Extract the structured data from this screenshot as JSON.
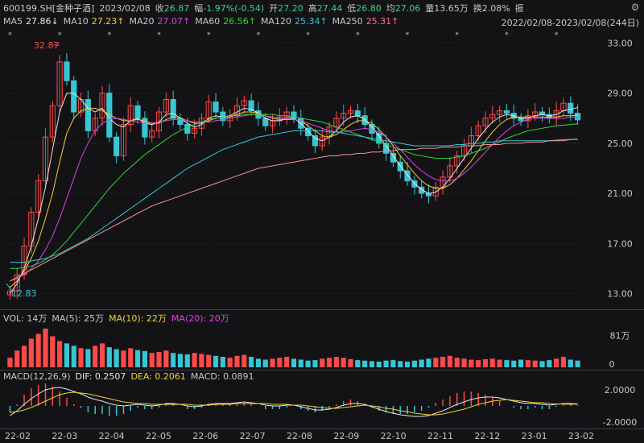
{
  "header": {
    "stock": "600199.SH[金种子酒]",
    "date": "2023/02/08",
    "close_label": "收",
    "close_value": "26.87",
    "change_label": "幅",
    "change_value": "-1.97%(-0.54)",
    "open_label": "开",
    "open_value": "27.20",
    "high_label": "高",
    "high_value": "27.44",
    "low_label": "低",
    "low_value": "26.80",
    "avg_label": "均",
    "avg_value": "27.06",
    "vol_label": "量",
    "vol_value": "13.65万",
    "turnover_label": "换",
    "turnover_value": "2.08%",
    "amp_label": "振"
  },
  "ma_legend": {
    "ma5_label": "MA5",
    "ma5_value": "27.86↓",
    "ma10_label": "MA10",
    "ma10_value": "27.23↑",
    "ma20_label": "MA20",
    "ma20_value": "27.07↑",
    "ma60_label": "MA60",
    "ma60_value": "26.56↑",
    "ma120_label": "MA120",
    "ma120_value": "25.34↑",
    "ma250_label": "MA250",
    "ma250_value": "25.31↑",
    "range": "2022/02/08-2023/02/08(244日)"
  },
  "colors": {
    "ma5": "#e8e8e8",
    "ma10": "#f0d030",
    "ma20": "#e040e0",
    "ma60": "#37d23d",
    "ma120": "#37c6d4",
    "ma250": "#ff8f8f",
    "up": "#ff4a4a",
    "down": "#37c6d4"
  },
  "price_axis": {
    "ticks": [
      "33.00",
      "29.00",
      "25.00",
      "21.00",
      "17.00",
      "13.00"
    ],
    "tick_values": [
      33,
      29,
      25,
      21,
      17,
      13
    ],
    "high_marker": "32.87",
    "low_marker": "12.83"
  },
  "volume_panel": {
    "title": "VOL: 14万",
    "ma5": "MA(5): 25万",
    "ma10": "MA(10): 22万",
    "ma20": "MA(20): 20万",
    "axis_top": "81万",
    "axis_zero": "0"
  },
  "macd_panel": {
    "title": "MACD(12,26,9)",
    "dif": "DIF: 0.2507",
    "dea": "DEA: 0.2061",
    "macd": "MACD: 0.0891",
    "axis_top": "2.0000",
    "axis_bottom": "-2.0000"
  },
  "x_axis": {
    "labels": [
      "22-02",
      "22-03",
      "22-04",
      "22-05",
      "22-06",
      "22-07",
      "22-08",
      "22-09",
      "22-10",
      "22-11",
      "22-12",
      "23-01",
      "23-02"
    ]
  },
  "chart_data": {
    "type": "candlestick",
    "price_range": [
      12.0,
      34.0
    ],
    "closes": [
      13.2,
      14.5,
      16.8,
      19.5,
      22.0,
      25.5,
      28.0,
      31.5,
      30.0,
      27.5,
      28.5,
      26.0,
      27.0,
      29.0,
      25.5,
      24.0,
      26.5,
      28.0,
      27.0,
      25.5,
      26.0,
      27.5,
      28.5,
      27.0,
      26.5,
      25.8,
      26.2,
      27.0,
      28.3,
      27.5,
      26.8,
      27.2,
      28.0,
      28.4,
      27.6,
      27.0,
      26.4,
      26.8,
      27.1,
      27.5,
      27.0,
      26.2,
      25.6,
      24.8,
      25.5,
      26.3,
      27.0,
      27.4,
      27.6,
      27.2,
      26.5,
      25.8,
      25.0,
      24.2,
      23.5,
      22.8,
      22.0,
      21.5,
      21.0,
      20.8,
      21.5,
      22.3,
      23.2,
      24.0,
      24.8,
      25.6,
      26.4,
      27.0,
      27.3,
      27.6,
      27.4,
      27.0,
      26.8,
      27.2,
      27.5,
      27.3,
      27.0,
      27.6,
      28.2,
      27.4,
      26.87
    ],
    "ma_series": {
      "ma5": [
        13.0,
        13.8,
        15.0,
        16.8,
        19.0,
        21.5,
        24.5,
        27.5,
        29.0,
        29.0,
        28.5,
        27.8,
        27.5,
        27.8,
        27.0,
        26.5,
        26.3,
        26.8,
        27.0,
        26.6,
        26.5,
        26.7,
        27.3,
        27.4,
        27.0,
        26.6,
        26.3,
        26.5,
        27.0,
        27.2,
        27.1,
        27.2,
        27.5,
        27.8,
        27.7,
        27.4,
        27.0,
        26.8,
        26.8,
        27.0,
        27.0,
        26.6,
        26.0,
        25.4,
        25.2,
        25.5,
        26.0,
        26.7,
        27.1,
        27.2,
        26.9,
        26.3,
        25.6,
        24.8,
        24.0,
        23.2,
        22.5,
        21.8,
        21.3,
        21.0,
        21.1,
        21.5,
        22.2,
        23.0,
        23.8,
        24.6,
        25.4,
        26.1,
        26.7,
        27.1,
        27.3,
        27.2,
        27.0,
        27.0,
        27.2,
        27.3,
        27.2,
        27.3,
        27.6,
        27.7,
        27.86
      ],
      "ma10": [
        13.5,
        14.0,
        14.8,
        15.8,
        17.2,
        19.0,
        21.0,
        23.5,
        25.8,
        27.0,
        27.6,
        27.8,
        27.8,
        27.6,
        27.3,
        27.0,
        26.8,
        26.8,
        26.9,
        26.8,
        26.6,
        26.6,
        26.9,
        27.1,
        27.0,
        26.8,
        26.6,
        26.6,
        26.8,
        27.0,
        27.1,
        27.1,
        27.3,
        27.5,
        27.5,
        27.4,
        27.2,
        27.0,
        26.9,
        26.9,
        26.9,
        26.8,
        26.4,
        26.0,
        25.6,
        25.5,
        25.7,
        26.1,
        26.5,
        26.8,
        26.8,
        26.6,
        26.1,
        25.5,
        24.8,
        24.0,
        23.3,
        22.6,
        22.0,
        21.6,
        21.4,
        21.4,
        21.7,
        22.2,
        22.9,
        23.6,
        24.4,
        25.2,
        25.9,
        26.5,
        26.9,
        27.1,
        27.1,
        27.1,
        27.1,
        27.1,
        27.1,
        27.1,
        27.2,
        27.2,
        27.23
      ],
      "ma20": [
        14.0,
        14.2,
        14.5,
        15.0,
        15.6,
        16.5,
        17.6,
        19.0,
        20.6,
        22.2,
        23.8,
        25.0,
        26.0,
        26.6,
        26.9,
        27.0,
        26.9,
        26.8,
        26.7,
        26.6,
        26.6,
        26.7,
        26.8,
        26.9,
        26.9,
        26.8,
        26.7,
        26.7,
        26.7,
        26.8,
        26.9,
        27.0,
        27.1,
        27.2,
        27.3,
        27.3,
        27.2,
        27.1,
        27.0,
        27.0,
        26.9,
        26.8,
        26.6,
        26.4,
        26.2,
        26.0,
        25.9,
        25.9,
        26.0,
        26.1,
        26.2,
        26.1,
        25.9,
        25.5,
        25.0,
        24.5,
        23.9,
        23.3,
        22.8,
        22.4,
        22.1,
        22.0,
        22.0,
        22.2,
        22.6,
        23.1,
        23.7,
        24.3,
        24.9,
        25.5,
        26.0,
        26.4,
        26.7,
        26.9,
        27.0,
        27.0,
        27.0,
        27.0,
        27.0,
        27.1,
        27.07
      ],
      "ma60": [
        15.0,
        15.0,
        15.1,
        15.2,
        15.4,
        15.7,
        16.1,
        16.6,
        17.2,
        17.9,
        18.6,
        19.3,
        20.0,
        20.7,
        21.4,
        22.0,
        22.6,
        23.1,
        23.6,
        24.1,
        24.5,
        24.9,
        25.3,
        25.7,
        26.0,
        26.3,
        26.5,
        26.7,
        26.9,
        27.0,
        27.1,
        27.2,
        27.2,
        27.3,
        27.3,
        27.3,
        27.3,
        27.3,
        27.2,
        27.2,
        27.1,
        27.0,
        26.9,
        26.8,
        26.7,
        26.5,
        26.3,
        26.1,
        25.9,
        25.7,
        25.5,
        25.3,
        25.1,
        24.9,
        24.7,
        24.5,
        24.3,
        24.1,
        24.0,
        23.9,
        23.8,
        23.8,
        23.8,
        23.9,
        24.0,
        24.2,
        24.4,
        24.6,
        24.9,
        25.1,
        25.4,
        25.6,
        25.8,
        26.0,
        26.1,
        26.2,
        26.3,
        26.4,
        26.45,
        26.5,
        26.56
      ],
      "ma120": [
        15.5,
        15.5,
        15.5,
        15.6,
        15.7,
        15.8,
        16.0,
        16.2,
        16.5,
        16.8,
        17.1,
        17.4,
        17.8,
        18.2,
        18.6,
        19.0,
        19.4,
        19.8,
        20.2,
        20.6,
        21.0,
        21.4,
        21.8,
        22.2,
        22.6,
        23.0,
        23.3,
        23.6,
        23.9,
        24.2,
        24.5,
        24.7,
        24.9,
        25.1,
        25.3,
        25.5,
        25.6,
        25.7,
        25.8,
        25.9,
        26.0,
        26.0,
        26.0,
        26.0,
        26.0,
        25.9,
        25.9,
        25.8,
        25.7,
        25.6,
        25.5,
        25.4,
        25.3,
        25.2,
        25.1,
        25.0,
        24.9,
        24.8,
        24.8,
        24.8,
        24.8,
        24.8,
        24.8,
        24.9,
        24.9,
        25.0,
        25.0,
        25.1,
        25.1,
        25.2,
        25.2,
        25.2,
        25.2,
        25.2,
        25.2,
        25.2,
        25.2,
        25.25,
        25.3,
        25.3,
        25.34
      ],
      "ma250": [
        14.0,
        14.3,
        14.6,
        14.9,
        15.2,
        15.5,
        15.8,
        16.1,
        16.4,
        16.7,
        17.0,
        17.3,
        17.6,
        17.9,
        18.2,
        18.5,
        18.8,
        19.1,
        19.4,
        19.7,
        20.0,
        20.2,
        20.4,
        20.6,
        20.8,
        21.0,
        21.2,
        21.4,
        21.6,
        21.8,
        22.0,
        22.2,
        22.4,
        22.6,
        22.8,
        23.0,
        23.1,
        23.2,
        23.3,
        23.4,
        23.5,
        23.6,
        23.7,
        23.8,
        23.9,
        24.0,
        24.0,
        24.1,
        24.1,
        24.2,
        24.2,
        24.3,
        24.3,
        24.4,
        24.4,
        24.5,
        24.5,
        24.5,
        24.6,
        24.6,
        24.6,
        24.7,
        24.7,
        24.7,
        24.8,
        24.8,
        24.8,
        24.9,
        24.9,
        24.9,
        25.0,
        25.0,
        25.0,
        25.1,
        25.1,
        25.1,
        25.2,
        25.2,
        25.2,
        25.3,
        25.31
      ]
    },
    "volume_max": 81,
    "volume_values": [
      20,
      35,
      45,
      60,
      70,
      81,
      65,
      55,
      50,
      45,
      40,
      38,
      45,
      50,
      42,
      38,
      35,
      40,
      36,
      34,
      30,
      32,
      35,
      30,
      28,
      27,
      30,
      28,
      26,
      24,
      22,
      20,
      24,
      26,
      22,
      18,
      16,
      18,
      20,
      22,
      18,
      16,
      14,
      15,
      18,
      20,
      22,
      20,
      17,
      15,
      14,
      13,
      12,
      14,
      15,
      13,
      12,
      14,
      16,
      18,
      20,
      22,
      24,
      20,
      18,
      16,
      15,
      17,
      18,
      16,
      15,
      14,
      16,
      15,
      14,
      13,
      15,
      18,
      22,
      16,
      14
    ],
    "macd_range": [
      -2.6,
      2.6
    ],
    "dif_values": [
      -1.2,
      -0.6,
      0.2,
      0.9,
      1.5,
      2.0,
      2.2,
      2.3,
      2.1,
      1.8,
      1.5,
      1.1,
      0.8,
      0.6,
      0.3,
      0.1,
      0.0,
      0.1,
      0.2,
      0.1,
      0.0,
      0.1,
      0.3,
      0.3,
      0.2,
      0.0,
      -0.1,
      0.0,
      0.2,
      0.3,
      0.3,
      0.3,
      0.4,
      0.5,
      0.4,
      0.3,
      0.1,
      0.0,
      0.0,
      0.1,
      0.1,
      -0.1,
      -0.3,
      -0.5,
      -0.5,
      -0.4,
      -0.2,
      0.1,
      0.3,
      0.3,
      0.2,
      -0.1,
      -0.4,
      -0.7,
      -0.9,
      -1.1,
      -1.2,
      -1.3,
      -1.3,
      -1.2,
      -0.9,
      -0.6,
      -0.2,
      0.2,
      0.5,
      0.8,
      1.0,
      1.1,
      1.1,
      1.0,
      0.8,
      0.6,
      0.4,
      0.3,
      0.3,
      0.2,
      0.1,
      0.2,
      0.3,
      0.3,
      0.25
    ],
    "dea_values": [
      -0.8,
      -0.7,
      -0.5,
      -0.2,
      0.2,
      0.6,
      1.0,
      1.4,
      1.6,
      1.7,
      1.6,
      1.5,
      1.3,
      1.1,
      0.9,
      0.7,
      0.5,
      0.4,
      0.3,
      0.3,
      0.2,
      0.2,
      0.2,
      0.2,
      0.2,
      0.2,
      0.1,
      0.1,
      0.1,
      0.2,
      0.2,
      0.2,
      0.3,
      0.3,
      0.3,
      0.3,
      0.3,
      0.2,
      0.2,
      0.2,
      0.1,
      0.1,
      0.0,
      -0.1,
      -0.2,
      -0.3,
      -0.3,
      -0.2,
      -0.1,
      0.0,
      0.1,
      0.0,
      -0.1,
      -0.3,
      -0.4,
      -0.6,
      -0.7,
      -0.9,
      -1.0,
      -1.1,
      -1.1,
      -1.0,
      -0.8,
      -0.6,
      -0.4,
      -0.1,
      0.2,
      0.4,
      0.6,
      0.7,
      0.8,
      0.7,
      0.6,
      0.5,
      0.4,
      0.4,
      0.3,
      0.25,
      0.22,
      0.21,
      0.21
    ]
  }
}
